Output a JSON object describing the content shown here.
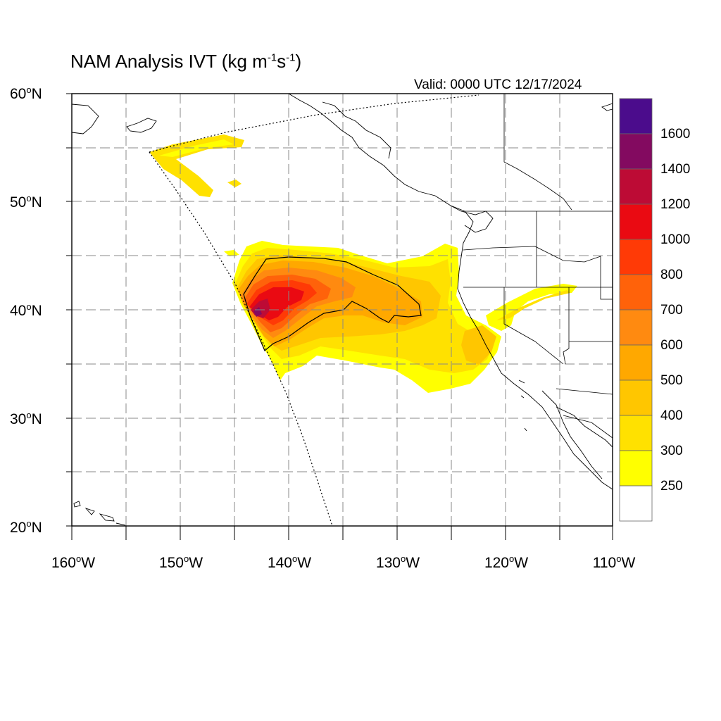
{
  "title": {
    "main": "NAM Analysis IVT (kg m",
    "exp1": "-1",
    "mid": "s",
    "exp2": "-1",
    "end": ")"
  },
  "valid_time": "Valid: 0000 UTC 12/17/2024",
  "map": {
    "lon_range": [
      -160,
      -110
    ],
    "lat_range": [
      20,
      60
    ],
    "lat_labels": [
      {
        "deg": "60",
        "hemi": "N"
      },
      {
        "deg": "50",
        "hemi": "N"
      },
      {
        "deg": "40",
        "hemi": "N"
      },
      {
        "deg": "30",
        "hemi": "N"
      },
      {
        "deg": "20",
        "hemi": "N"
      }
    ],
    "lon_labels": [
      {
        "deg": "160",
        "hemi": "W"
      },
      {
        "deg": "150",
        "hemi": "W"
      },
      {
        "deg": "140",
        "hemi": "W"
      },
      {
        "deg": "130",
        "hemi": "W"
      },
      {
        "deg": "120",
        "hemi": "W"
      },
      {
        "deg": "110",
        "hemi": "W"
      }
    ],
    "gridlines": "dashed every 5 degrees",
    "colorbar_labels": [
      "1600",
      "1400",
      "1200",
      "1000",
      "800",
      "700",
      "600",
      "500",
      "400",
      "300",
      "250"
    ],
    "colorbar_colors": [
      "#4b0c8c",
      "#830a60",
      "#bd0b35",
      "#ea0a12",
      "#ff3a06",
      "#ff620a",
      "#ff8a10",
      "#ffa800",
      "#ffc600",
      "#ffe100",
      "#ffff00",
      "#ffffff"
    ],
    "ivt_field": "atmospheric river from about 143W 39N extending northeast to the California and Oregon coast"
  }
}
